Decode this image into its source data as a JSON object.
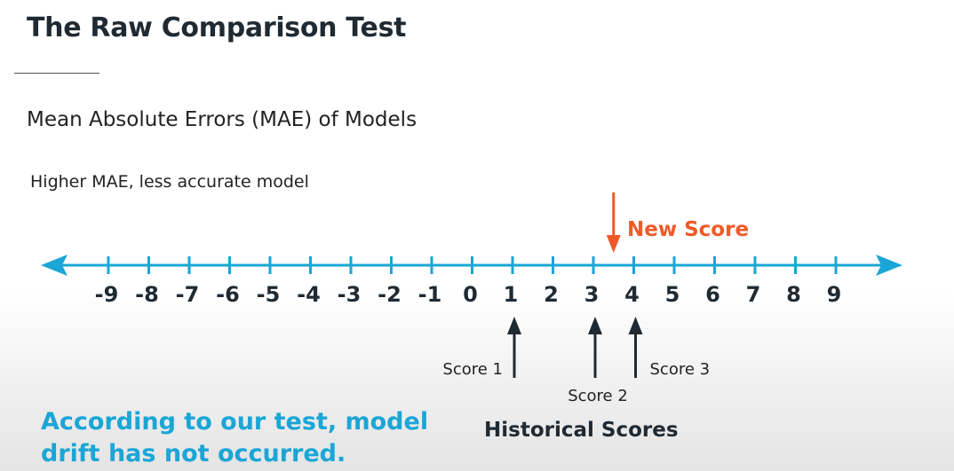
{
  "slide": {
    "title": "The Raw Comparison Test",
    "subtitle": "Mean Absolute Errors (MAE) of Models",
    "note": "Higher MAE, less accurate model",
    "conclusion": "According to our test, model drift has not occurred."
  },
  "number_line": {
    "ticks": [
      "-9",
      "-8",
      "-7",
      "-6",
      "-5",
      "-4",
      "-3",
      "-2",
      "-1",
      "0",
      "1",
      "2",
      "3",
      "4",
      "5",
      "6",
      "7",
      "8",
      "9"
    ],
    "line_color": "#1aa6d6",
    "historical_label": "Historical Scores",
    "historical_scores": [
      {
        "label": "Score 1",
        "value": 1
      },
      {
        "label": "Score 2",
        "value": 3
      },
      {
        "label": "Score 3",
        "value": 4
      }
    ],
    "new_score": {
      "label": "New Score",
      "value": 3.5,
      "color": "#f05a28"
    }
  },
  "colors": {
    "conclusion": "#1aa6d6",
    "new_score": "#f05a28",
    "historical_arrow": "#1f2a33"
  }
}
